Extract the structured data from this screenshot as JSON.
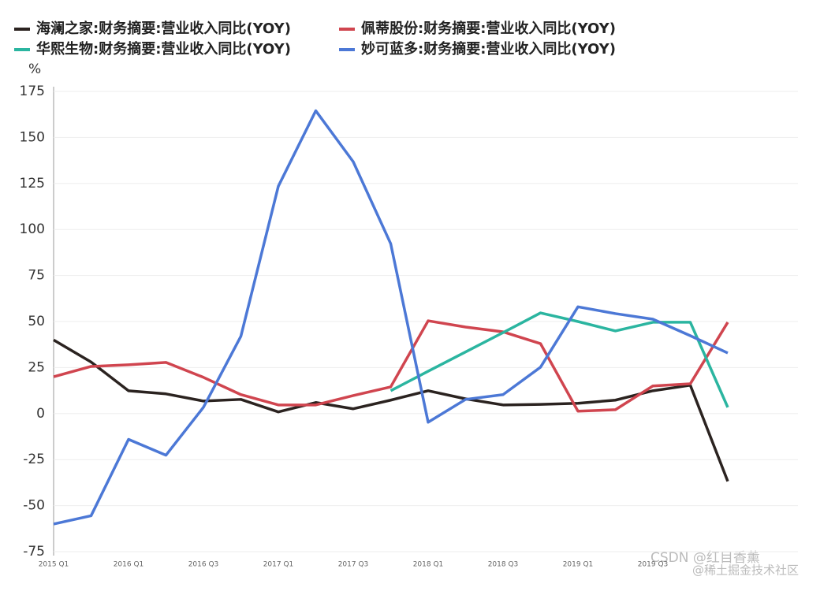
{
  "chart_data": {
    "type": "line",
    "y_label": "%",
    "categories": [
      "2015 Q1",
      null,
      "2016 Q1",
      null,
      "2016 Q3",
      null,
      "2017 Q1",
      null,
      "2017 Q3",
      null,
      "2018 Q1",
      null,
      "2018 Q3",
      null,
      "2019 Q1",
      null,
      "2019 Q3",
      null,
      null
    ],
    "series": [
      {
        "name": "海澜之家:财务摘要:营业收入同比(YOY)",
        "color": "#2b2320",
        "values": [
          40,
          28,
          12.4,
          10.7,
          6.8,
          7.7,
          0.9,
          6,
          2.6,
          7.3,
          12.4,
          8,
          4.7,
          5,
          5.6,
          7.3,
          12.4,
          15.4,
          -36.8
        ]
      },
      {
        "name": "佩蒂股份:财务摘要:营业收入同比(YOY)",
        "color": "#d0454f",
        "values": [
          20,
          25.6,
          26.5,
          27.8,
          19.7,
          10.3,
          4.7,
          4.7,
          9.8,
          14.5,
          50.4,
          47,
          44.4,
          38,
          1.3,
          2.1,
          15,
          16.2,
          49.6
        ]
      },
      {
        "name": "华熙生物:财务摘要:营业收入同比(YOY)",
        "color": "#2bb5a0",
        "values": [
          null,
          null,
          null,
          null,
          null,
          null,
          null,
          null,
          null,
          12.4,
          23,
          33.5,
          44,
          54.7,
          50,
          44.9,
          49.6,
          49.6,
          3.4
        ]
      },
      {
        "name": "妙可蓝多:财务摘要:营业收入同比(YOY)",
        "color": "#4c78d6",
        "values": [
          -60,
          -55.5,
          -14,
          -22.6,
          3.4,
          42,
          123.5,
          164.5,
          136.8,
          92.3,
          -4.7,
          7.7,
          10.3,
          25.2,
          58,
          54.3,
          51.3,
          42.3,
          32.9
        ]
      }
    ],
    "ylim": [
      -75,
      175
    ],
    "yticks": [
      -75,
      -50,
      -25,
      0,
      25,
      50,
      75,
      100,
      125,
      150,
      175
    ],
    "grid": true,
    "watermarks": [
      "CSDN @红目香薰",
      "@稀土掘金技术社区"
    ]
  }
}
